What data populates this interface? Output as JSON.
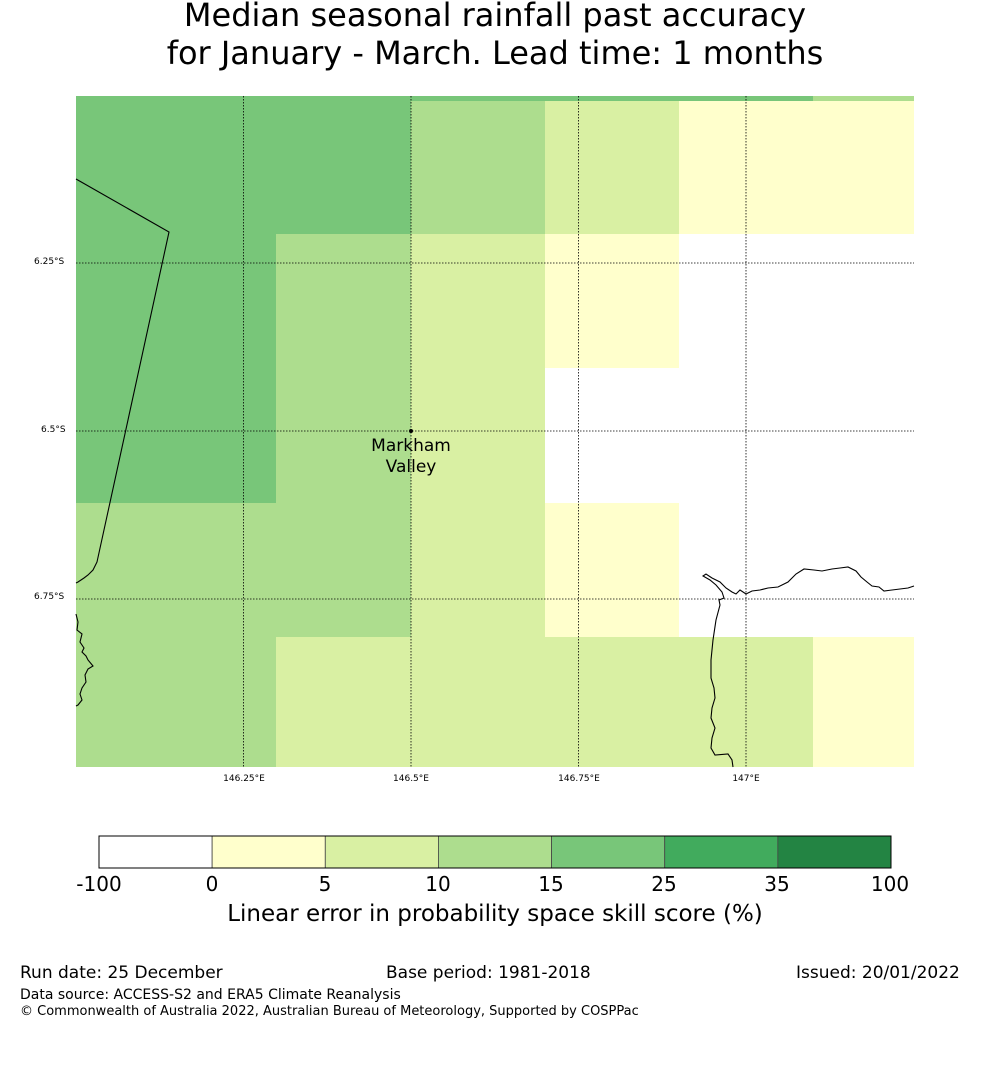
{
  "title": {
    "line1": "Median seasonal rainfall past accuracy",
    "line2": "for January - March. Lead time: 1 months"
  },
  "map": {
    "lat_labels": [
      "6.25°S",
      "6.5°S",
      "6.75°S"
    ],
    "lon_labels": [
      "146.25°E",
      "146.5°E",
      "146.75°E",
      "147°E"
    ],
    "place": {
      "name_line1": "Markham",
      "name_line2": "Valley"
    }
  },
  "colorbar": {
    "ticks": [
      "-100",
      "0",
      "5",
      "10",
      "15",
      "25",
      "35",
      "100"
    ],
    "colors": [
      "#ffffff",
      "#ffffcc",
      "#d9f0a3",
      "#addd8e",
      "#78c679",
      "#41ab5d",
      "#238443"
    ],
    "label": "Linear error in probability space skill score (%)"
  },
  "footer": {
    "run_date": "Run date: 25 December",
    "base_period": "Base period: 1981-2018",
    "issued": "Issued: 20/01/2022",
    "data_source": "Data source: ACCESS-S2 and ERA5 Climate Reanalysis",
    "copyright": "© Commonwealth of Australia 2022, Australian Bureau of Meteorology, Supported by COSPPac"
  }
}
